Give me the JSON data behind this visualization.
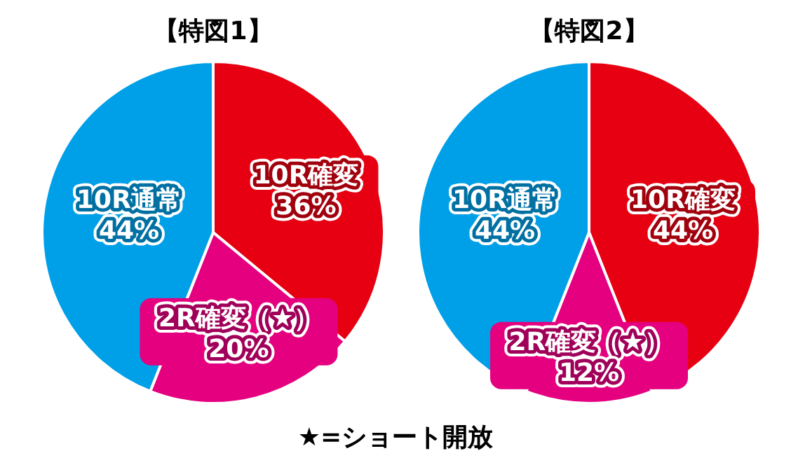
{
  "chart_data": [
    {
      "type": "pie",
      "title": "【特図1】",
      "categories": [
        "10R確変",
        "2R確変（★）",
        "10R通常"
      ],
      "values": [
        36,
        20,
        44
      ],
      "value_labels": [
        "36%",
        "20%",
        "44%"
      ],
      "colors": [
        "#e60012",
        "#e4007f",
        "#00a0e9"
      ],
      "annotations": [
        "★=ショート開放"
      ]
    },
    {
      "type": "pie",
      "title": "【特図2】",
      "categories": [
        "10R確変",
        "2R確変（★）",
        "10R通常"
      ],
      "values": [
        44,
        12,
        44
      ],
      "value_labels": [
        "44%",
        "12%",
        "44%"
      ],
      "colors": [
        "#e60012",
        "#e4007f",
        "#00a0e9"
      ]
    }
  ]
}
